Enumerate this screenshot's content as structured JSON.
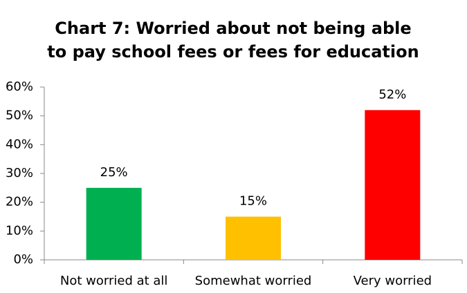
{
  "chart_data": {
    "type": "bar",
    "title": [
      "Chart 7: Worried about not being able",
      "to pay school fees or fees for education"
    ],
    "categories": [
      "Not worried at all",
      "Somewhat worried",
      "Very worried"
    ],
    "values": [
      25,
      15,
      52
    ],
    "value_labels": [
      "25%",
      "15%",
      "52%"
    ],
    "colors": [
      "#00b050",
      "#ffc000",
      "#ff0000"
    ],
    "ylim": [
      0,
      60
    ],
    "yticks": [
      {
        "value": 0,
        "label": "0%"
      },
      {
        "value": 10,
        "label": "10%"
      },
      {
        "value": 20,
        "label": "20%"
      },
      {
        "value": 30,
        "label": "30%"
      },
      {
        "value": 40,
        "label": "40%"
      },
      {
        "value": 50,
        "label": "50%"
      },
      {
        "value": 60,
        "label": "60%"
      }
    ]
  }
}
